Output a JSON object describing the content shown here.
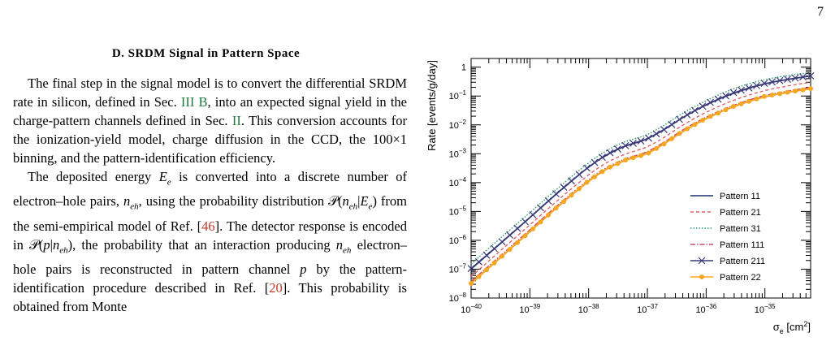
{
  "page_number": "7",
  "section": {
    "heading": "D.   SRDM Signal in Pattern Space"
  },
  "paragraphs": [
    {
      "segments": [
        {
          "t": "The final step in the signal model is to convert the differential SRDM rate in silicon, defined in Sec. ",
          "c": ""
        },
        {
          "t": "III B",
          "c": "ref"
        },
        {
          "t": ", into an expected signal yield in the charge-pattern channels defined in Sec. ",
          "c": ""
        },
        {
          "t": "II",
          "c": "ref"
        },
        {
          "t": ". This conversion accounts for the ionization-yield model, charge diffusion in the CCD, the 100×1 binning, and the pattern-identification efficiency.",
          "c": ""
        }
      ]
    },
    {
      "segments": [
        {
          "t": "The deposited energy ",
          "c": ""
        },
        {
          "t": "E",
          "c": "math"
        },
        {
          "t": "e",
          "c": "sub"
        },
        {
          "t": " is converted into a discrete number of electron–hole pairs, ",
          "c": ""
        },
        {
          "t": "n",
          "c": "math"
        },
        {
          "t": "eh",
          "c": "sub"
        },
        {
          "t": ", using the probability distribution 𝒫(",
          "c": ""
        },
        {
          "t": "n",
          "c": "math"
        },
        {
          "t": "eh",
          "c": "sub"
        },
        {
          "t": "|",
          "c": ""
        },
        {
          "t": "E",
          "c": "math"
        },
        {
          "t": "e",
          "c": "sub"
        },
        {
          "t": ") from the semi-empirical model of Ref. [",
          "c": ""
        },
        {
          "t": "46",
          "c": "cite"
        },
        {
          "t": "]. The detector response is encoded in 𝒫(",
          "c": ""
        },
        {
          "t": "p",
          "c": "math"
        },
        {
          "t": "|",
          "c": ""
        },
        {
          "t": "n",
          "c": "math"
        },
        {
          "t": "eh",
          "c": "sub"
        },
        {
          "t": "), the probability that an interaction producing ",
          "c": ""
        },
        {
          "t": "n",
          "c": "math"
        },
        {
          "t": "eh",
          "c": "sub"
        },
        {
          "t": " electron–hole pairs is reconstructed in pattern channel ",
          "c": ""
        },
        {
          "t": "p",
          "c": "math"
        },
        {
          "t": " by the pattern-identification procedure described in Ref. [",
          "c": ""
        },
        {
          "t": "20",
          "c": "cite"
        },
        {
          "t": "].  This probability is obtained from Monte",
          "c": ""
        }
      ]
    }
  ],
  "colors": {
    "ref": "#1f7a3f",
    "cite": "#c0392b"
  },
  "chart_data": {
    "type": "line",
    "xlabel": "σ",
    "xlabel_sub": "e",
    "xlabel_unit": " [cm",
    "xlabel_sup": "2",
    "xlabel_close": "]",
    "ylabel": "Rate [events/g/day]",
    "x_scale": "log",
    "y_scale": "log",
    "xlim": [
      1e-40,
      6e-35
    ],
    "ylim": [
      1e-08,
      2
    ],
    "x_ticks": [
      {
        "v": 1e-40,
        "base": "10",
        "exp": "−40"
      },
      {
        "v": 1e-39,
        "base": "10",
        "exp": "−39"
      },
      {
        "v": 1e-38,
        "base": "10",
        "exp": "−38"
      },
      {
        "v": 1e-37,
        "base": "10",
        "exp": "−37"
      },
      {
        "v": 1e-36,
        "base": "10",
        "exp": "−36"
      },
      {
        "v": 1e-35,
        "base": "10",
        "exp": "−35"
      }
    ],
    "y_ticks": [
      {
        "v": 1e-08,
        "base": "10",
        "exp": "−8"
      },
      {
        "v": 1e-07,
        "base": "10",
        "exp": "−7"
      },
      {
        "v": 1e-06,
        "base": "10",
        "exp": "−6"
      },
      {
        "v": 1e-05,
        "base": "10",
        "exp": "−5"
      },
      {
        "v": 0.0001,
        "base": "10",
        "exp": "−4"
      },
      {
        "v": 0.001,
        "base": "10",
        "exp": "−3"
      },
      {
        "v": 0.01,
        "base": "10",
        "exp": "−2"
      },
      {
        "v": 0.1,
        "base": "10",
        "exp": "−1"
      },
      {
        "v": 1,
        "base": "1",
        "exp": ""
      }
    ],
    "grid": false,
    "legend_position": "bottom-right",
    "series": [
      {
        "name": "Pattern 11",
        "color": "#1f2f6b",
        "dash": "",
        "marker": "none",
        "x": [
          1e-40,
          3e-40,
          1e-39,
          3e-39,
          1e-38,
          2e-38,
          4e-38,
          7e-38,
          1e-37,
          2e-37,
          4e-37,
          1e-36,
          3e-36,
          1e-35,
          3e-35,
          6e-35
        ],
        "y": [
          1e-07,
          7e-07,
          6e-06,
          4.5e-05,
          0.00035,
          0.0009,
          0.0018,
          0.0025,
          0.0032,
          0.007,
          0.018,
          0.05,
          0.13,
          0.27,
          0.4,
          0.49
        ]
      },
      {
        "name": "Pattern 21",
        "color": "#e0606a",
        "dash": "4,3",
        "marker": "none",
        "x": [
          1e-40,
          3e-40,
          1e-39,
          3e-39,
          1e-38,
          2e-38,
          4e-38,
          7e-38,
          1e-37,
          2e-37,
          4e-37,
          1e-36,
          3e-36,
          1e-35,
          3e-35,
          6e-35
        ],
        "y": [
          5.5e-08,
          4e-07,
          3.4e-06,
          2.5e-05,
          0.00019,
          0.0005,
          0.00095,
          0.00135,
          0.0017,
          0.0038,
          0.01,
          0.028,
          0.075,
          0.16,
          0.24,
          0.3
        ]
      },
      {
        "name": "Pattern 31",
        "color": "#2a9a70",
        "dash": "1.5,2",
        "marker": "none",
        "x": [
          1e-40,
          3e-40,
          1e-39,
          3e-39,
          1e-38,
          2e-38,
          4e-38,
          7e-38,
          1e-37,
          2e-37,
          4e-37,
          1e-36,
          3e-36,
          1e-35,
          3e-35,
          6e-35
        ],
        "y": [
          1.5e-07,
          1.1e-06,
          9e-06,
          6.5e-05,
          0.0005,
          0.0013,
          0.0026,
          0.0036,
          0.0045,
          0.01,
          0.026,
          0.07,
          0.19,
          0.38,
          0.55,
          0.65
        ]
      },
      {
        "name": "Pattern 111",
        "color": "#d04a6a",
        "dash": "6,2,1.5,2",
        "marker": "none",
        "x": [
          1e-40,
          3e-40,
          1e-39,
          3e-39,
          1e-38,
          2e-38,
          4e-38,
          7e-38,
          1e-37,
          2e-37,
          4e-37,
          1e-36,
          3e-36,
          1e-35,
          3e-35,
          6e-35
        ],
        "y": [
          3.8e-08,
          2.7e-07,
          2.3e-06,
          1.7e-05,
          0.00013,
          0.00034,
          0.00065,
          0.00092,
          0.00115,
          0.0026,
          0.0068,
          0.019,
          0.05,
          0.108,
          0.16,
          0.2
        ]
      },
      {
        "name": "Pattern 211",
        "color": "#3a3a7a",
        "dash": "",
        "marker": "cross",
        "x": [
          1e-40,
          3e-40,
          1e-39,
          3e-39,
          1e-38,
          2e-38,
          4e-38,
          7e-38,
          1e-37,
          2e-37,
          4e-37,
          1e-36,
          3e-36,
          1e-35,
          3e-35,
          6e-35
        ],
        "y": [
          1.05e-07,
          7.3e-07,
          6.2e-06,
          4.7e-05,
          0.00036,
          0.00094,
          0.00185,
          0.0026,
          0.0033,
          0.0072,
          0.0185,
          0.052,
          0.135,
          0.28,
          0.41,
          0.5
        ]
      },
      {
        "name": "Pattern 22",
        "color": "#f5a623",
        "dash": "",
        "marker": "dot",
        "x": [
          1e-40,
          3e-40,
          1e-39,
          3e-39,
          1e-38,
          2e-38,
          4e-38,
          7e-38,
          1e-37,
          2e-37,
          4e-37,
          1e-36,
          3e-36,
          1e-35,
          3e-35,
          6e-35
        ],
        "y": [
          3.2e-08,
          2.3e-07,
          2e-06,
          1.5e-05,
          0.000115,
          0.0003,
          0.00058,
          0.00082,
          0.001,
          0.0023,
          0.006,
          0.017,
          0.045,
          0.098,
          0.145,
          0.18
        ]
      }
    ]
  }
}
